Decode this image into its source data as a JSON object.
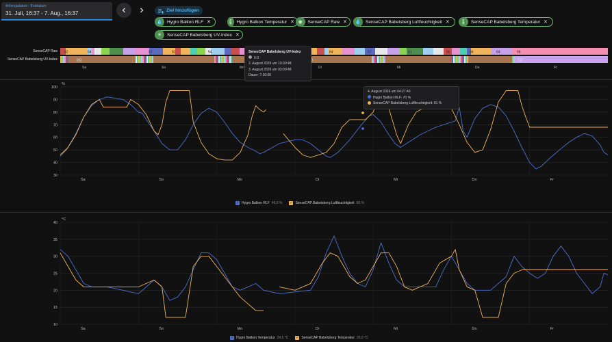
{
  "date_range": {
    "caption": "Anfangsdatum - Enddatum",
    "value": "31. Juli, 16:37 - 7. Aug., 16:37"
  },
  "nav": {
    "prev_icon": "chevron-left-icon",
    "next_icon": "chevron-right-icon"
  },
  "add_target": {
    "label": "Ziel hinzufügen",
    "icon": "add-list-icon"
  },
  "chips": [
    {
      "label": "Hygro Balkon RLF",
      "icon": "water-drop-icon"
    },
    {
      "label": "Hygro Balkon Temperatur",
      "icon": "thermometer-icon"
    },
    {
      "label": "SenseCAP Raw",
      "icon": "eye-icon"
    },
    {
      "label": "SenseCAP Babelsberg Luftfeuchtigkeit",
      "icon": "water-drop-icon"
    },
    {
      "label": "SenseCAP Babelsberg Temperatur",
      "icon": "thermometer-icon"
    },
    {
      "label": "SenseCAP Babelsberg UV-Index",
      "icon": "sun-icon"
    }
  ],
  "timeline": {
    "rows": [
      "SenseCAP Raw",
      "SenseCAP Babelsberg UV-Index"
    ],
    "raw_labels": [
      "62",
      "64",
      "57",
      "61",
      "54",
      "64",
      "57",
      "61",
      "56",
      "66",
      "64",
      "56"
    ],
    "uv_labels": [
      "0.0",
      "0.0",
      "7.2"
    ],
    "days": [
      "Sa",
      "So",
      "Mo",
      "Di",
      "Mi",
      "Do",
      "Fr"
    ]
  },
  "tooltip_uv": {
    "title": "SenseCAP Babelsberg UV-Index",
    "value": "0.0",
    "start": "2. August 2026 um 19:30:48",
    "end": "3. August 2026 um 03:00:48",
    "duration": "Dauer: 7:30:00"
  },
  "tooltip_humidity": {
    "time": "4. August 2026 um 04:27:40",
    "line1": "Hygro Balkon RLF: 70 %",
    "line2": "SenseCAP Babelsberg Luftfeuchtigkeit: 81 %"
  },
  "colors": {
    "blue": "#4d71d1",
    "orange": "#f2b45a",
    "background": "#111111"
  },
  "chart_data": [
    {
      "type": "line",
      "ylabel": "%",
      "ylim": [
        30,
        100
      ],
      "yticks": [
        30,
        40,
        50,
        60,
        70,
        80,
        90,
        100
      ],
      "days": [
        "Sa",
        "So",
        "Mo",
        "Di",
        "Mi",
        "Do",
        "Fr"
      ],
      "x_range_days": [
        0,
        7
      ],
      "series": [
        {
          "name": "Hygro Balkon RLF",
          "last": "46,0 %",
          "color": "#4d71d1",
          "points": [
            [
              0,
              45
            ],
            [
              0.08,
              50
            ],
            [
              0.2,
              63
            ],
            [
              0.3,
              76
            ],
            [
              0.4,
              85
            ],
            [
              0.5,
              90
            ],
            [
              0.6,
              92
            ],
            [
              0.7,
              91
            ],
            [
              0.8,
              90
            ],
            [
              0.9,
              86
            ],
            [
              1.0,
              80
            ],
            [
              1.05,
              79
            ],
            [
              1.1,
              74
            ],
            [
              1.2,
              65
            ],
            [
              1.3,
              55
            ],
            [
              1.4,
              50
            ],
            [
              1.5,
              50
            ],
            [
              1.6,
              58
            ],
            [
              1.7,
              70
            ],
            [
              1.8,
              79
            ],
            [
              1.9,
              83
            ],
            [
              2.0,
              80
            ],
            [
              2.1,
              72
            ],
            [
              2.2,
              63
            ],
            [
              2.3,
              56
            ],
            [
              2.4,
              52
            ],
            [
              2.5,
              49
            ],
            [
              2.55,
              47
            ],
            [
              2.6,
              48
            ],
            [
              2.8,
              55
            ],
            [
              3.0,
              58
            ],
            [
              3.1,
              58
            ],
            [
              3.2,
              55
            ],
            [
              3.3,
              50
            ],
            [
              3.4,
              45
            ],
            [
              3.45,
              44
            ],
            [
              3.55,
              48
            ],
            [
              3.7,
              58
            ],
            [
              3.85,
              70
            ],
            [
              3.95,
              77
            ],
            [
              4.0,
              78
            ],
            [
              4.1,
              72
            ],
            [
              4.2,
              62
            ],
            [
              4.28,
              55
            ],
            [
              4.35,
              52
            ],
            [
              4.45,
              56
            ],
            [
              4.6,
              62
            ],
            [
              4.8,
              68
            ],
            [
              4.95,
              71
            ],
            [
              5.05,
              73
            ],
            [
              5.1,
              84
            ],
            [
              5.15,
              65
            ],
            [
              5.2,
              60
            ],
            [
              5.3,
              75
            ],
            [
              5.4,
              83
            ],
            [
              5.5,
              86
            ],
            [
              5.6,
              84
            ],
            [
              5.7,
              77
            ],
            [
              5.8,
              65
            ],
            [
              5.9,
              52
            ],
            [
              6.0,
              40
            ],
            [
              6.08,
              35
            ],
            [
              6.15,
              37
            ],
            [
              6.25,
              43
            ],
            [
              6.4,
              51
            ],
            [
              6.5,
              56
            ],
            [
              6.6,
              60
            ],
            [
              6.7,
              63
            ],
            [
              6.8,
              61
            ],
            [
              6.9,
              54
            ],
            [
              6.95,
              48
            ],
            [
              7.0,
              46
            ]
          ]
        },
        {
          "name": "SenseCAP Babelsberg Luftfeuchtigkeit",
          "last": "68 %",
          "color": "#f2b45a",
          "points": [
            [
              0,
              46
            ],
            [
              0.1,
              52
            ],
            [
              0.2,
              62
            ],
            [
              0.3,
              76
            ],
            [
              0.4,
              86
            ],
            [
              0.5,
              90
            ],
            [
              0.55,
              84
            ],
            [
              0.7,
              84
            ],
            [
              0.85,
              84
            ],
            [
              0.9,
              90
            ],
            [
              1.0,
              86
            ],
            [
              1.1,
              78
            ],
            [
              1.2,
              65
            ],
            [
              1.25,
              62
            ],
            [
              1.3,
              70
            ],
            [
              1.35,
              88
            ],
            [
              1.4,
              97
            ],
            [
              1.5,
              97
            ],
            [
              1.65,
              97
            ],
            [
              1.7,
              72
            ],
            [
              1.8,
              56
            ],
            [
              1.9,
              47
            ],
            [
              2.0,
              43
            ],
            [
              2.1,
              42
            ],
            [
              2.2,
              42
            ],
            [
              2.3,
              48
            ],
            [
              2.4,
              62
            ],
            [
              2.45,
              76
            ],
            [
              2.5,
              85
            ],
            [
              2.55,
              82
            ],
            [
              2.6,
              80
            ],
            [
              2.63,
              82
            ]
          ]
        },
        {
          "name": "SenseCAP Babelsberg Luftfeuchtigkeit (2)",
          "color": "#f2b45a",
          "points": [
            [
              2.85,
              63
            ],
            [
              3.0,
              52
            ],
            [
              3.1,
              46
            ],
            [
              3.2,
              44
            ],
            [
              3.3,
              46
            ],
            [
              3.4,
              48
            ],
            [
              3.5,
              55
            ],
            [
              3.6,
              68
            ],
            [
              3.7,
              74
            ],
            [
              3.8,
              74
            ],
            [
              3.9,
              74
            ],
            [
              4.0,
              80
            ],
            [
              4.05,
              88
            ],
            [
              4.1,
              96
            ],
            [
              4.2,
              83
            ],
            [
              4.3,
              62
            ],
            [
              4.35,
              55
            ],
            [
              4.45,
              70
            ],
            [
              4.55,
              80
            ],
            [
              4.7,
              85
            ],
            [
              4.85,
              88
            ],
            [
              4.95,
              88
            ],
            [
              5.0,
              83
            ],
            [
              5.1,
              70
            ],
            [
              5.2,
              56
            ],
            [
              5.3,
              48
            ],
            [
              5.4,
              50
            ],
            [
              5.5,
              66
            ],
            [
              5.6,
              88
            ],
            [
              5.7,
              97
            ],
            [
              5.85,
              97
            ],
            [
              5.9,
              85
            ],
            [
              5.95,
              76
            ],
            [
              6.0,
              68
            ],
            [
              7.0,
              68
            ]
          ]
        }
      ]
    },
    {
      "type": "line",
      "ylabel": "°C",
      "ylim": [
        10,
        40
      ],
      "yticks": [
        10,
        15,
        20,
        25,
        30,
        35,
        40
      ],
      "days": [
        "Sa",
        "So",
        "Mo",
        "Di",
        "Mi",
        "Do",
        "Fr"
      ],
      "x_range_days": [
        0,
        7
      ],
      "series": [
        {
          "name": "Hygro Balkon Temperatur",
          "last": "24,5 °C",
          "color": "#4d71d1",
          "points": [
            [
              0,
              32
            ],
            [
              0.1,
              30
            ],
            [
              0.2,
              26
            ],
            [
              0.3,
              22
            ],
            [
              0.4,
              21
            ],
            [
              0.6,
              21
            ],
            [
              0.8,
              20
            ],
            [
              1.0,
              19
            ],
            [
              1.1,
              21
            ],
            [
              1.2,
              23
            ],
            [
              1.3,
              21
            ],
            [
              1.4,
              17
            ],
            [
              1.5,
              18
            ],
            [
              1.6,
              21
            ],
            [
              1.7,
              26
            ],
            [
              1.8,
              31
            ],
            [
              1.9,
              31
            ],
            [
              2.0,
              29
            ],
            [
              2.1,
              25
            ],
            [
              2.2,
              21
            ],
            [
              2.3,
              20
            ],
            [
              2.4,
              21
            ],
            [
              2.5,
              22
            ],
            [
              2.6,
              20
            ],
            [
              2.8,
              19
            ],
            [
              3.0,
              19.5
            ],
            [
              3.2,
              20
            ],
            [
              3.3,
              24
            ],
            [
              3.4,
              31
            ],
            [
              3.5,
              36
            ],
            [
              3.6,
              30
            ],
            [
              3.7,
              25
            ],
            [
              3.8,
              22
            ],
            [
              3.9,
              21
            ],
            [
              4.0,
              26
            ],
            [
              4.1,
              34
            ],
            [
              4.2,
              28
            ],
            [
              4.3,
              23
            ],
            [
              4.4,
              21
            ],
            [
              4.6,
              21
            ],
            [
              4.8,
              21
            ],
            [
              4.9,
              26
            ],
            [
              5.0,
              30
            ],
            [
              5.1,
              26
            ],
            [
              5.2,
              22
            ],
            [
              5.3,
              20
            ],
            [
              5.5,
              20
            ],
            [
              5.7,
              24
            ],
            [
              5.8,
              30
            ],
            [
              5.9,
              27
            ],
            [
              6.0,
              25
            ],
            [
              6.1,
              23.5
            ],
            [
              6.2,
              25
            ],
            [
              6.3,
              30
            ],
            [
              6.4,
              33
            ],
            [
              6.5,
              30
            ],
            [
              6.6,
              25
            ],
            [
              6.7,
              22
            ],
            [
              6.8,
              19
            ],
            [
              6.9,
              21
            ],
            [
              6.95,
              25
            ],
            [
              7.0,
              24.5
            ]
          ]
        },
        {
          "name": "SenseCAP Babelsberg Temperatur",
          "last": "26,0 °C",
          "color": "#f2b45a",
          "points": [
            [
              0,
              31
            ],
            [
              0.1,
              27
            ],
            [
              0.2,
              23
            ],
            [
              0.3,
              21
            ],
            [
              0.6,
              21
            ],
            [
              0.8,
              21
            ],
            [
              1.0,
              21
            ],
            [
              1.1,
              22
            ],
            [
              1.2,
              23
            ],
            [
              1.3,
              21
            ],
            [
              1.35,
              12
            ],
            [
              1.6,
              12
            ],
            [
              1.7,
              27
            ],
            [
              1.8,
              30
            ],
            [
              1.9,
              30
            ],
            [
              2.0,
              27
            ],
            [
              2.1,
              24
            ],
            [
              2.2,
              21
            ],
            [
              2.3,
              18
            ],
            [
              2.4,
              16
            ],
            [
              2.5,
              14
            ],
            [
              2.6,
              14
            ]
          ]
        },
        {
          "name": "SenseCAP Babelsberg Temperatur (2)",
          "color": "#f2b45a",
          "points": [
            [
              2.8,
              21
            ],
            [
              3.0,
              20
            ],
            [
              3.2,
              22
            ],
            [
              3.35,
              28
            ],
            [
              3.45,
              31
            ],
            [
              3.55,
              30
            ],
            [
              3.7,
              24
            ],
            [
              3.8,
              22
            ],
            [
              3.9,
              23
            ],
            [
              4.0,
              27
            ],
            [
              4.1,
              31
            ],
            [
              4.2,
              31
            ],
            [
              4.3,
              27
            ],
            [
              4.4,
              21
            ],
            [
              4.5,
              20
            ],
            [
              4.7,
              22
            ],
            [
              4.85,
              28
            ],
            [
              5.0,
              30
            ],
            [
              5.05,
              32
            ],
            [
              5.1,
              26
            ],
            [
              5.2,
              21
            ],
            [
              5.3,
              20
            ],
            [
              5.4,
              12
            ],
            [
              5.6,
              12
            ],
            [
              5.7,
              22
            ],
            [
              5.8,
              25
            ],
            [
              5.9,
              26
            ],
            [
              7.0,
              26
            ]
          ]
        }
      ]
    }
  ]
}
